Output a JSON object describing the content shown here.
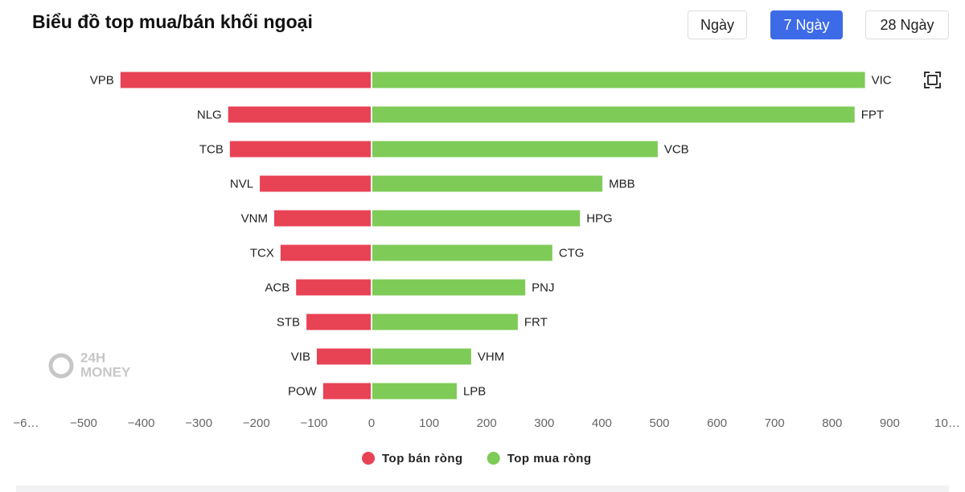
{
  "header": {
    "title": "Biểu đồ top mua/bán khối ngoại",
    "buttons": [
      "Ngày",
      "7 Ngày",
      "28 Ngày"
    ],
    "active_button": 1
  },
  "watermark": [
    "24H",
    "MONEY"
  ],
  "chart_data": {
    "type": "bar",
    "orientation": "horizontal",
    "series": [
      {
        "name": "Top bán ròng",
        "color": "#e84255",
        "categories": [
          "VPB",
          "NLG",
          "TCB",
          "NVL",
          "VNM",
          "TCX",
          "ACB",
          "STB",
          "VIB",
          "POW"
        ],
        "values": [
          -436,
          -249,
          -246,
          -194,
          -169,
          -158,
          -131,
          -113,
          -95,
          -84
        ]
      },
      {
        "name": "Top mua ròng",
        "color": "#7ecb57",
        "categories": [
          "VIC",
          "FPT",
          "VCB",
          "MBB",
          "HPG",
          "CTG",
          "PNJ",
          "FRT",
          "VHM",
          "LPB"
        ],
        "values": [
          857,
          839,
          497,
          401,
          362,
          314,
          267,
          254,
          173,
          148
        ]
      }
    ],
    "xlim": [
      -600,
      1000
    ],
    "xticks": [
      {
        "value": -600,
        "label": "−6…"
      },
      {
        "value": -500,
        "label": "−500"
      },
      {
        "value": -400,
        "label": "−400"
      },
      {
        "value": -300,
        "label": "−300"
      },
      {
        "value": -200,
        "label": "−200"
      },
      {
        "value": -100,
        "label": "−100"
      },
      0,
      100,
      200,
      300,
      400,
      500,
      600,
      700,
      800,
      900,
      {
        "value": 1000,
        "label": "10…"
      }
    ],
    "grid": false,
    "legend": "bottom"
  }
}
